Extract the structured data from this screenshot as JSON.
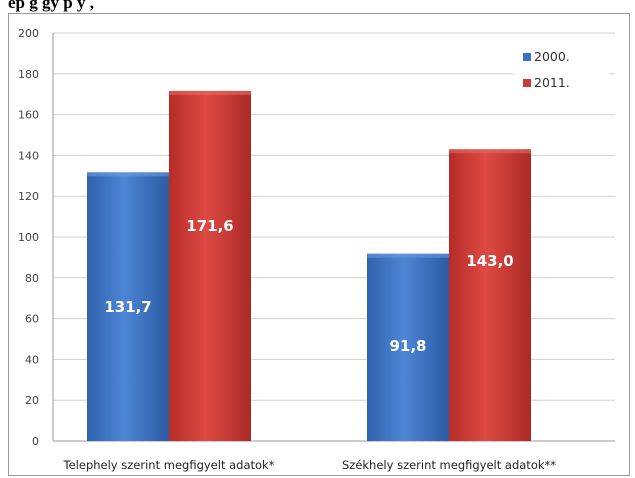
{
  "caption": "ép                                   g          gy            p y           ,",
  "chart_data": {
    "type": "bar",
    "title": "",
    "xlabel": "",
    "ylabel": "",
    "ylim": [
      0,
      200
    ],
    "yticks": [
      0,
      20,
      40,
      60,
      80,
      100,
      120,
      140,
      160,
      180,
      200
    ],
    "grid": true,
    "legend_position": "top-right",
    "categories": [
      "Telephely szerint  megfigyelt adatok*",
      "Székhely szerint  megfigyelt adatok**"
    ],
    "series": [
      {
        "name": "2000.",
        "color": "#3a73c4",
        "values": [
          131.7,
          91.8
        ],
        "labels": [
          "131,7",
          "91,8"
        ]
      },
      {
        "name": "2011.",
        "color": "#cc3a35",
        "values": [
          171.6,
          143.0
        ],
        "labels": [
          "171,6",
          "143,0"
        ]
      }
    ]
  }
}
